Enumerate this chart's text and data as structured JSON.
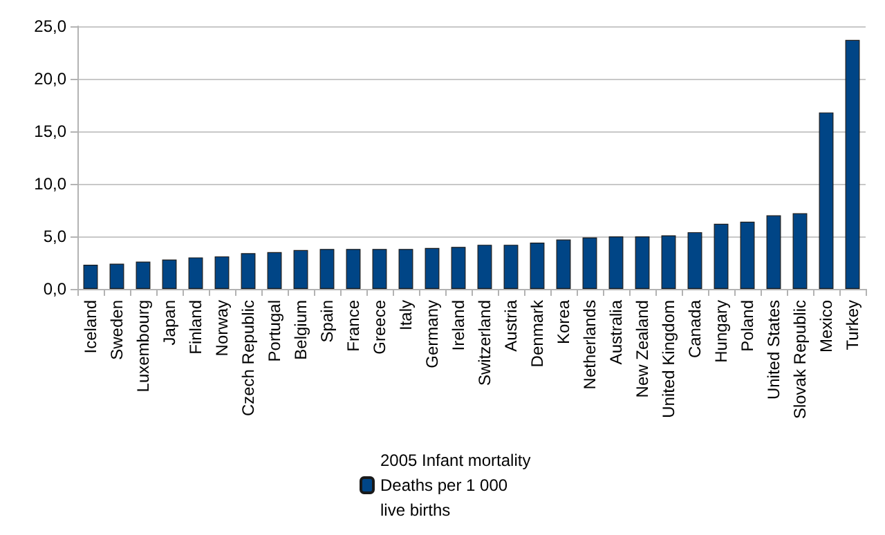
{
  "chart_data": {
    "type": "bar",
    "categories": [
      "Iceland",
      "Sweden",
      "Luxembourg",
      "Japan",
      "Finland",
      "Norway",
      "Czech Republic",
      "Portugal",
      "Belgium",
      "Spain",
      "France",
      "Greece",
      "Italy",
      "Germany",
      "Ireland",
      "Switzerland",
      "Austria",
      "Denmark",
      "Korea",
      "Netherlands",
      "Australia",
      "New Zealand",
      "United Kingdom",
      "Canada",
      "Hungary",
      "Poland",
      "United States",
      "Slovak Republic",
      "Mexico",
      "Turkey"
    ],
    "series": [
      {
        "name": "2005 Infant mortality\nDeaths per 1 000\nlive births",
        "color": "#004586",
        "values": [
          2.3,
          2.4,
          2.6,
          2.8,
          3.0,
          3.1,
          3.4,
          3.5,
          3.7,
          3.8,
          3.8,
          3.8,
          3.8,
          3.9,
          4.0,
          4.2,
          4.2,
          4.4,
          4.7,
          4.9,
          5.0,
          5.0,
          5.1,
          5.4,
          6.2,
          6.4,
          7.0,
          7.2,
          16.8,
          23.7
        ]
      }
    ],
    "ylim": [
      0,
      25
    ],
    "yticks": [
      {
        "value": 0,
        "label": "0,0"
      },
      {
        "value": 5,
        "label": "5,0"
      },
      {
        "value": 10,
        "label": "10,0"
      },
      {
        "value": 15,
        "label": "15,0"
      },
      {
        "value": 20,
        "label": "20,0"
      },
      {
        "value": 25,
        "label": "25,0"
      }
    ],
    "grid": "y",
    "legend": "bottom"
  }
}
